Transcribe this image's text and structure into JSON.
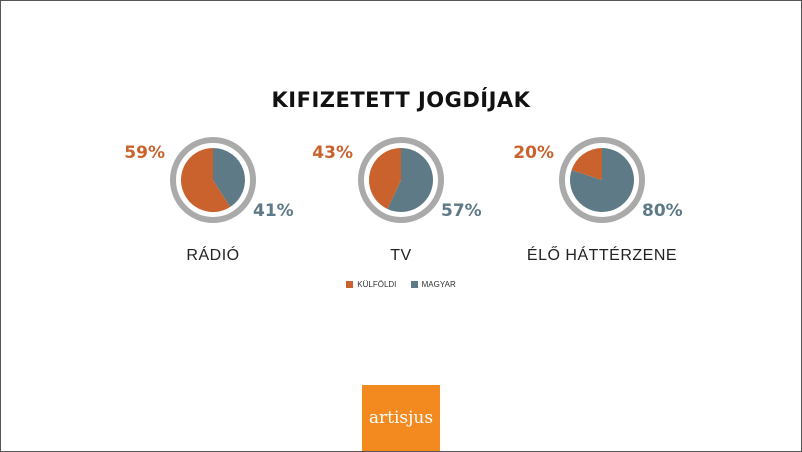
{
  "colors": {
    "foreign": "#c9622d",
    "hungarian": "#5e7a86",
    "ring": "#aaaaaa",
    "logo_bg": "#f28a1f"
  },
  "chart_data": {
    "type": "pie",
    "title": "KIFIZETETT JOGDÍJAK",
    "legend": [
      "KÜLFÖLDI",
      "MAGYAR"
    ],
    "charts": [
      {
        "category": "RÁDIÓ",
        "foreign": 59,
        "hungarian": 41,
        "foreign_label": "59%",
        "hungarian_label": "41%"
      },
      {
        "category": "TV",
        "foreign": 43,
        "hungarian": 57,
        "foreign_label": "43%",
        "hungarian_label": "57%"
      },
      {
        "category": "ÉLŐ HÁTTÉRZENE",
        "foreign": 20,
        "hungarian": 80,
        "foreign_label": "20%",
        "hungarian_label": "80%"
      }
    ]
  },
  "logo": {
    "text": "artisjus"
  }
}
